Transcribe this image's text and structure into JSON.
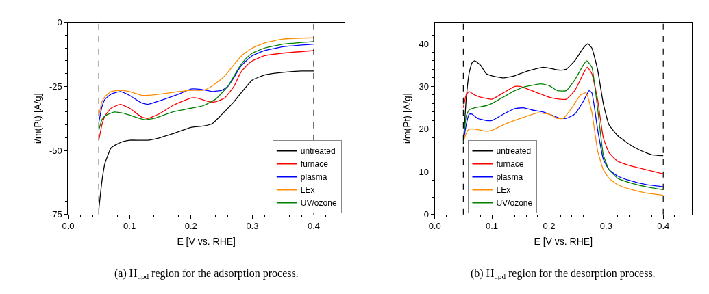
{
  "chart_data": [
    {
      "type": "line",
      "xlabel": "E [V vs. RHE]",
      "ylabel": "i/m(Pt) [A/g]",
      "xlim": [
        0,
        0.45
      ],
      "ylim": [
        -75,
        0
      ],
      "xticks": [
        {
          "value": 0,
          "label": "0.0"
        },
        0.1,
        0.2,
        0.3,
        0.4
      ],
      "yticks": [
        -75,
        -50,
        -25,
        0
      ],
      "legend": "bottom right",
      "grid": false,
      "line_style": "solid",
      "marker": "none",
      "ref_lines": [
        {
          "axis": "x",
          "value": 0.05,
          "color": "#000000",
          "line_style": "dashed"
        },
        {
          "axis": "x",
          "value": 0.4,
          "color": "#000000",
          "line_style": "dashed"
        }
      ],
      "annotations": [
        "(a) H$_{upd}$ region for the adsorption process."
      ],
      "series": [
        {
          "name": "untreated",
          "color": "#000000",
          "x": [
            0.05,
            0.055,
            0.06,
            0.07,
            0.08,
            0.09,
            0.1,
            0.13,
            0.15,
            0.17,
            0.2,
            0.22,
            0.235,
            0.25,
            0.27,
            0.28,
            0.3,
            0.32,
            0.35,
            0.38,
            0.4
          ],
          "values": [
            -73,
            -62,
            -55,
            -49,
            -47.5,
            -46.5,
            -46,
            -46,
            -45,
            -43.5,
            -41,
            -40.5,
            -39.5,
            -36,
            -31,
            -28,
            -22.5,
            -20.5,
            -19.5,
            -19,
            -19
          ]
        },
        {
          "name": "furnace",
          "color": "#ff0000",
          "x": [
            0.05,
            0.055,
            0.06,
            0.07,
            0.085,
            0.1,
            0.12,
            0.13,
            0.15,
            0.17,
            0.2,
            0.21,
            0.23,
            0.24,
            0.255,
            0.27,
            0.28,
            0.29,
            0.3,
            0.32,
            0.35,
            0.4
          ],
          "values": [
            -46,
            -40,
            -36.5,
            -33.5,
            -32,
            -33.5,
            -37,
            -37.5,
            -35.5,
            -32.5,
            -29.5,
            -29.5,
            -31,
            -31,
            -29.5,
            -25,
            -20,
            -17,
            -15,
            -13,
            -12,
            -11
          ]
        },
        {
          "name": "plasma",
          "color": "#0000ff",
          "x": [
            0.05,
            0.055,
            0.06,
            0.07,
            0.085,
            0.1,
            0.12,
            0.13,
            0.15,
            0.18,
            0.2,
            0.21,
            0.225,
            0.235,
            0.25,
            0.26,
            0.27,
            0.28,
            0.29,
            0.3,
            0.32,
            0.35,
            0.4
          ],
          "values": [
            -39,
            -33,
            -30,
            -28,
            -27,
            -28.5,
            -31.5,
            -32,
            -30.5,
            -28,
            -26,
            -26,
            -26.5,
            -27,
            -26.5,
            -25,
            -21.5,
            -17.5,
            -15,
            -13,
            -11,
            -9.5,
            -8.5
          ]
        },
        {
          "name": "LEx",
          "color": "#ff8c00",
          "x": [
            0.05,
            0.055,
            0.06,
            0.07,
            0.085,
            0.1,
            0.12,
            0.13,
            0.15,
            0.18,
            0.2,
            0.22,
            0.23,
            0.25,
            0.26,
            0.27,
            0.285,
            0.3,
            0.32,
            0.35,
            0.4
          ],
          "values": [
            -36.5,
            -31,
            -29,
            -27,
            -26.5,
            -27,
            -28.5,
            -28.5,
            -28,
            -27,
            -26.5,
            -26.5,
            -25.5,
            -22,
            -19.5,
            -16.5,
            -12.5,
            -10,
            -8,
            -6.5,
            -6
          ]
        },
        {
          "name": "UV/ozone",
          "color": "#008000",
          "x": [
            0.05,
            0.055,
            0.06,
            0.075,
            0.09,
            0.11,
            0.125,
            0.14,
            0.17,
            0.2,
            0.22,
            0.24,
            0.26,
            0.27,
            0.28,
            0.29,
            0.3,
            0.32,
            0.35,
            0.4
          ],
          "values": [
            -42,
            -38,
            -36.5,
            -35,
            -35.5,
            -37,
            -38,
            -37.5,
            -35,
            -33.5,
            -32.5,
            -30,
            -25,
            -21,
            -17,
            -14,
            -12,
            -10,
            -8.5,
            -7.5
          ]
        }
      ]
    },
    {
      "type": "line",
      "xlabel": "E [V vs. RHE]",
      "ylabel": "i/m(Pt) [A/g]",
      "xlim": [
        0,
        0.45
      ],
      "ylim": [
        0,
        45
      ],
      "xticks": [
        {
          "value": 0,
          "label": "0.0"
        },
        0.1,
        0.2,
        0.3,
        0.4
      ],
      "yticks": [
        0,
        10,
        20,
        30,
        40
      ],
      "legend": "bottom left",
      "grid": false,
      "line_style": "solid",
      "marker": "none",
      "ref_lines": [
        {
          "axis": "x",
          "value": 0.05,
          "color": "#000000",
          "line_style": "dashed"
        },
        {
          "axis": "x",
          "value": 0.4,
          "color": "#000000",
          "line_style": "dashed"
        }
      ],
      "annotations": [
        "(b) H$_{upd}$ region for the desorption process."
      ],
      "series": [
        {
          "name": "untreated",
          "color": "#000000",
          "x": [
            0.05,
            0.055,
            0.06,
            0.065,
            0.07,
            0.08,
            0.09,
            0.1,
            0.12,
            0.14,
            0.16,
            0.19,
            0.21,
            0.22,
            0.23,
            0.245,
            0.26,
            0.268,
            0.275,
            0.285,
            0.295,
            0.305,
            0.32,
            0.34,
            0.36,
            0.38,
            0.4
          ],
          "values": [
            16.5,
            27,
            33,
            35.5,
            36,
            35,
            33,
            32.5,
            32,
            32.5,
            33.5,
            34.5,
            34,
            33.8,
            34,
            36,
            39,
            40,
            39,
            34,
            26,
            21,
            18.5,
            16.5,
            15,
            14,
            13.8
          ]
        },
        {
          "name": "furnace",
          "color": "#ff0000",
          "x": [
            0.05,
            0.055,
            0.06,
            0.07,
            0.08,
            0.1,
            0.12,
            0.14,
            0.15,
            0.17,
            0.2,
            0.22,
            0.23,
            0.245,
            0.26,
            0.267,
            0.275,
            0.285,
            0.295,
            0.305,
            0.32,
            0.34,
            0.37,
            0.4
          ],
          "values": [
            25,
            28,
            28.8,
            28,
            27.5,
            27,
            28.5,
            30,
            30,
            29,
            27.5,
            27,
            27,
            29,
            33,
            34.5,
            33,
            27,
            18,
            14.5,
            12.5,
            11.5,
            10.5,
            9.5
          ]
        },
        {
          "name": "plasma",
          "color": "#0000ff",
          "x": [
            0.05,
            0.055,
            0.06,
            0.065,
            0.075,
            0.09,
            0.1,
            0.12,
            0.14,
            0.155,
            0.17,
            0.19,
            0.21,
            0.22,
            0.23,
            0.245,
            0.26,
            0.27,
            0.275,
            0.285,
            0.295,
            0.305,
            0.32,
            0.34,
            0.37,
            0.4
          ],
          "values": [
            17,
            21,
            23.5,
            23.5,
            22.5,
            22,
            22,
            23.5,
            24.8,
            25,
            24.5,
            24,
            23,
            22.5,
            22.5,
            23.5,
            26.5,
            29,
            28.5,
            20,
            13,
            10.5,
            9,
            8,
            7,
            6.5
          ]
        },
        {
          "name": "LEx",
          "color": "#ff8c00",
          "x": [
            0.05,
            0.055,
            0.06,
            0.07,
            0.09,
            0.1,
            0.12,
            0.15,
            0.18,
            0.2,
            0.215,
            0.225,
            0.24,
            0.255,
            0.265,
            0.275,
            0.285,
            0.295,
            0.305,
            0.32,
            0.34,
            0.37,
            0.4
          ],
          "values": [
            17,
            19,
            20,
            20,
            19.5,
            19.7,
            21,
            22.5,
            23.8,
            23.5,
            22.5,
            22.5,
            25,
            28,
            28.5,
            24,
            15,
            10.5,
            8.5,
            7,
            6,
            5,
            4.5
          ]
        },
        {
          "name": "UV/ozone",
          "color": "#008000",
          "x": [
            0.05,
            0.055,
            0.06,
            0.07,
            0.09,
            0.1,
            0.12,
            0.14,
            0.16,
            0.185,
            0.2,
            0.215,
            0.23,
            0.245,
            0.26,
            0.266,
            0.275,
            0.285,
            0.295,
            0.305,
            0.32,
            0.34,
            0.37,
            0.4
          ],
          "values": [
            17,
            23,
            24.5,
            25,
            25.5,
            26,
            27.5,
            29,
            30,
            30.6,
            30.2,
            29,
            29,
            31.5,
            35,
            36,
            34.5,
            25,
            14,
            10.5,
            8.5,
            7.5,
            6.5,
            5.8
          ]
        }
      ]
    }
  ]
}
